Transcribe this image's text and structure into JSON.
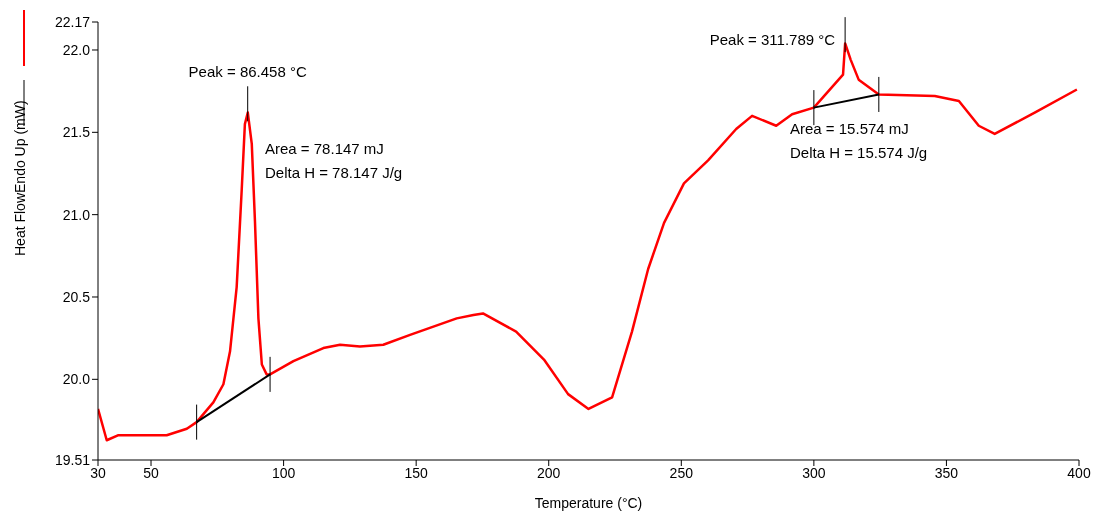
{
  "chart_data": {
    "type": "line",
    "xlabel": "Temperature (°C)",
    "ylabel": "Heat FlowEndo Up (mW)",
    "xlim": [
      30,
      400
    ],
    "xticks": [
      30,
      50,
      100,
      150,
      200,
      250,
      300,
      350,
      400
    ],
    "ylim": [
      19.51,
      22.17
    ],
    "yticks": [
      19.51,
      {
        "value": 20,
        "label": "20.0"
      },
      {
        "value": 20.5,
        "label": "20.5"
      },
      {
        "value": 21,
        "label": "21.0"
      },
      {
        "value": 21.5,
        "label": "21.5"
      },
      {
        "value": 22,
        "label": "22.0"
      },
      22.17
    ],
    "grid": false,
    "series": [
      {
        "color": "#ff0000",
        "x": [
          30,
          33.3,
          37.5,
          55.9,
          63.5,
          67.2,
          73.5,
          77.3,
          79.8,
          82.3,
          84.2,
          85.4,
          86.5,
          88,
          89.2,
          90.5,
          91.8,
          93.6,
          94.9,
          103.7,
          115,
          121.3,
          128.8,
          137.6,
          147.7,
          165.3,
          171.6,
          175.2,
          187.7,
          198.2,
          207.3,
          215,
          223.9,
          231.4,
          237.5,
          243.5,
          251,
          260.1,
          270.7,
          276.7,
          285.8,
          291.8,
          300,
          311,
          311.8,
          313.9,
          316.9,
          324.5,
          345.6,
          354.7,
          362.2,
          368.2,
          383.3,
          399.2
        ],
        "values": [
          19.82,
          19.63,
          19.66,
          19.66,
          19.7,
          19.74,
          19.86,
          19.97,
          20.17,
          20.56,
          21.15,
          21.55,
          21.62,
          21.43,
          20.96,
          20.37,
          20.09,
          20.03,
          20.03,
          20.11,
          20.19,
          20.21,
          20.2,
          20.21,
          20.27,
          20.37,
          20.39,
          20.4,
          20.29,
          20.12,
          19.91,
          19.82,
          19.89,
          20.29,
          20.67,
          20.95,
          21.19,
          21.33,
          21.52,
          21.6,
          21.54,
          21.61,
          21.65,
          21.85,
          22.04,
          21.94,
          21.82,
          21.73,
          21.72,
          21.69,
          21.54,
          21.49,
          21.62,
          21.76
        ]
      },
      {
        "color": "#000000",
        "x": [
          67.2,
          94.9
        ],
        "values": [
          19.74,
          20.03
        ]
      },
      {
        "color": "#000000",
        "x": [
          300,
          324.5
        ],
        "values": [
          21.65,
          21.73
        ]
      }
    ],
    "annotations": [
      {
        "text": "Peak = 86.458 °C",
        "x": 86.458,
        "y": 21.62
      },
      "Area = 78.147 mJ",
      "Delta H = 78.147 J/g",
      {
        "text": "Peak = 311.789 °C",
        "x": 311.789,
        "y": 22.04
      },
      "Area = 15.574 mJ",
      "Delta H = 15.574 J/g"
    ]
  }
}
